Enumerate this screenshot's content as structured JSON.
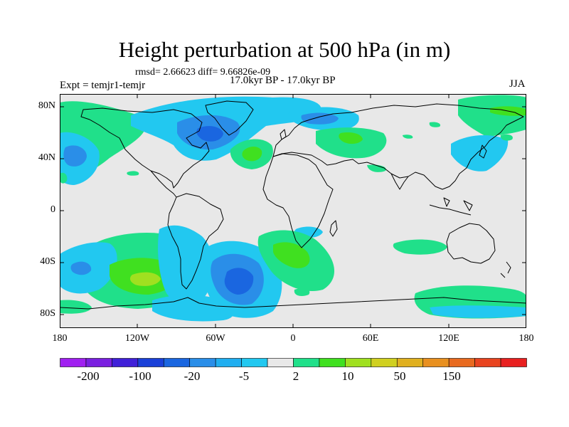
{
  "figure": {
    "title": "Height perturbation at 500 hPa (in m)",
    "rmsd_line": "rmsd= 2.66623 diff= 9.66826e-09",
    "experiment": "Expt = temjr1-temjr",
    "period": "17.0kyr BP - 17.0kyr BP",
    "season": "JJA"
  },
  "map": {
    "projection": "cylindrical-equidistant",
    "lon_range": [
      -180,
      180
    ],
    "lat_range": [
      -90,
      90
    ],
    "background_color": "#e8e8e8",
    "lat_labels": [
      "80N",
      "40N",
      "0",
      "40S",
      "80S"
    ],
    "lon_labels": [
      "180",
      "120W",
      "60W",
      "0",
      "60E",
      "120E",
      "180"
    ]
  },
  "colorbar": {
    "colors": [
      "#a020f0",
      "#7a20e0",
      "#4020d8",
      "#1a40d8",
      "#1a66e0",
      "#2a8ee8",
      "#20aef0",
      "#22c8f0",
      "#e8e8e8",
      "#20e08a",
      "#40e020",
      "#a0e020",
      "#d0d020",
      "#e0b020",
      "#e89020",
      "#e86a20",
      "#e84420",
      "#e82020"
    ],
    "labels": [
      "-200",
      "-100",
      "-20",
      "-5",
      "2",
      "10",
      "50",
      "150"
    ]
  }
}
